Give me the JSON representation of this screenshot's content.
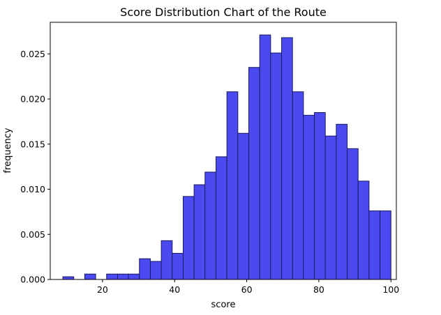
{
  "chart_data": {
    "type": "bar",
    "title": "Score Distribution Chart of the Route",
    "xlabel": "score",
    "ylabel": "frequency",
    "xlim": [
      5.5,
      101.5
    ],
    "ylim": [
      0.0,
      0.0285
    ],
    "xticks": [
      20,
      40,
      60,
      80,
      100
    ],
    "xtick_labels": [
      "20",
      "40",
      "60",
      "80",
      "100"
    ],
    "yticks": [
      0.0,
      0.005,
      0.01,
      0.015,
      0.02,
      0.025
    ],
    "ytick_labels": [
      "0.000",
      "0.005",
      "0.010",
      "0.015",
      "0.020",
      "0.025"
    ],
    "grid": false,
    "bar_color": "#4a4af0",
    "edge_color": "#1a1a5e",
    "bins": [
      {
        "start": 9.0,
        "end": 12.03,
        "value": 0.0003
      },
      {
        "start": 12.03,
        "end": 15.07,
        "value": 0.0
      },
      {
        "start": 15.07,
        "end": 18.1,
        "value": 0.0006
      },
      {
        "start": 18.1,
        "end": 21.13,
        "value": 0.0
      },
      {
        "start": 21.13,
        "end": 24.17,
        "value": 0.0006
      },
      {
        "start": 24.17,
        "end": 27.2,
        "value": 0.0006
      },
      {
        "start": 27.2,
        "end": 30.23,
        "value": 0.0006
      },
      {
        "start": 30.23,
        "end": 33.27,
        "value": 0.0023
      },
      {
        "start": 33.27,
        "end": 36.3,
        "value": 0.002
      },
      {
        "start": 36.3,
        "end": 39.33,
        "value": 0.0043
      },
      {
        "start": 39.33,
        "end": 42.37,
        "value": 0.0029
      },
      {
        "start": 42.37,
        "end": 45.4,
        "value": 0.0092
      },
      {
        "start": 45.4,
        "end": 48.43,
        "value": 0.0105
      },
      {
        "start": 48.43,
        "end": 51.47,
        "value": 0.0119
      },
      {
        "start": 51.47,
        "end": 54.5,
        "value": 0.0136
      },
      {
        "start": 54.5,
        "end": 57.53,
        "value": 0.0208
      },
      {
        "start": 57.53,
        "end": 60.57,
        "value": 0.0162
      },
      {
        "start": 60.57,
        "end": 63.6,
        "value": 0.0235
      },
      {
        "start": 63.6,
        "end": 66.63,
        "value": 0.0271
      },
      {
        "start": 66.63,
        "end": 69.67,
        "value": 0.0251
      },
      {
        "start": 69.67,
        "end": 72.7,
        "value": 0.0268
      },
      {
        "start": 72.7,
        "end": 75.73,
        "value": 0.0208
      },
      {
        "start": 75.73,
        "end": 78.77,
        "value": 0.0182
      },
      {
        "start": 78.77,
        "end": 81.8,
        "value": 0.0185
      },
      {
        "start": 81.8,
        "end": 84.83,
        "value": 0.0159
      },
      {
        "start": 84.83,
        "end": 87.87,
        "value": 0.0172
      },
      {
        "start": 87.87,
        "end": 90.9,
        "value": 0.0145
      },
      {
        "start": 90.9,
        "end": 93.93,
        "value": 0.0109
      },
      {
        "start": 93.93,
        "end": 96.97,
        "value": 0.0076
      },
      {
        "start": 96.97,
        "end": 100.0,
        "value": 0.0076
      }
    ]
  }
}
